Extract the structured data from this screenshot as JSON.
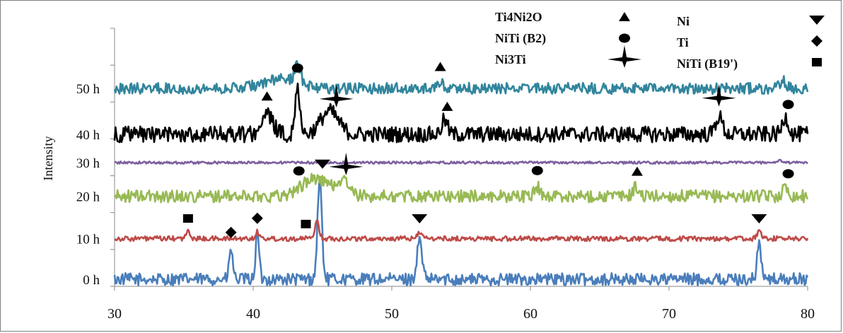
{
  "chart_data": {
    "type": "line",
    "title": "",
    "xlabel": "",
    "ylabel": "Intensity",
    "xlim": [
      30,
      80
    ],
    "x_ticks": [
      "30",
      "40",
      "50",
      "60",
      "70",
      "80"
    ],
    "grid": false,
    "legend_position": "top-right",
    "legend": [
      {
        "label": "Ti4Ni2O",
        "marker": "triangle"
      },
      {
        "label": "Ni",
        "marker": "triangle-down"
      },
      {
        "label": "NiTi (B2)",
        "marker": "circle"
      },
      {
        "label": "Ti",
        "marker": "diamond"
      },
      {
        "label": "Ni3Ti",
        "marker": "star"
      },
      {
        "label": "NiTi (B19')",
        "marker": "square"
      }
    ],
    "series": [
      {
        "name": "0 h",
        "color": "#4a7ebb",
        "baseline": 0,
        "noise": 0.35,
        "peaks": [
          [
            38.4,
            1.7,
            0.18
          ],
          [
            40.3,
            2.5,
            0.18
          ],
          [
            44.8,
            5.7,
            0.22
          ],
          [
            52.0,
            2.2,
            0.25
          ],
          [
            76.5,
            2.1,
            0.2
          ]
        ]
      },
      {
        "name": "10 h",
        "color": "#be4b48",
        "baseline": 2.3,
        "noise": 0.14,
        "peaks": [
          [
            35.3,
            0.4,
            0.2
          ],
          [
            40.3,
            0.4,
            0.2
          ],
          [
            44.6,
            1.0,
            0.22
          ],
          [
            52.0,
            0.4,
            0.22
          ],
          [
            76.5,
            0.4,
            0.22
          ]
        ]
      },
      {
        "name": "20 h",
        "color": "#98b954",
        "baseline": 4.7,
        "noise": 0.35,
        "peaks": [
          [
            44.5,
            1.0,
            1.4
          ],
          [
            46.5,
            0.8,
            0.6
          ],
          [
            60.5,
            0.5,
            0.3
          ],
          [
            67.6,
            0.5,
            0.3
          ],
          [
            78.4,
            0.5,
            0.3
          ]
        ]
      },
      {
        "name": "30 h",
        "color": "#7d60a0",
        "baseline": 6.6,
        "noise": 0.07,
        "peaks": [
          [
            78.0,
            0.1,
            0.3
          ]
        ]
      },
      {
        "name": "40 h",
        "color": "#000000",
        "baseline": 8.2,
        "noise": 0.45,
        "peaks": [
          [
            41.0,
            1.1,
            0.6
          ],
          [
            43.2,
            2.7,
            0.25
          ],
          [
            45.5,
            1.3,
            0.9
          ],
          [
            53.8,
            0.8,
            0.3
          ],
          [
            73.6,
            1.0,
            0.35
          ],
          [
            78.4,
            1.0,
            0.3
          ]
        ]
      },
      {
        "name": "50 h",
        "color": "#31859c",
        "baseline": 10.8,
        "noise": 0.32,
        "peaks": [
          [
            43.2,
            1.2,
            0.3
          ],
          [
            42.0,
            0.5,
            1.8
          ],
          [
            53.5,
            0.3,
            0.3
          ],
          [
            78.2,
            0.5,
            0.3
          ]
        ]
      }
    ],
    "annotations": [
      {
        "marker": "square",
        "x": 35.3,
        "series": "10 h"
      },
      {
        "marker": "diamond",
        "x": 38.4,
        "series": "0 h"
      },
      {
        "marker": "diamond",
        "x": 40.3,
        "series": "0 h"
      },
      {
        "marker": "square",
        "x": 43.8,
        "series": "10 h"
      },
      {
        "marker": "triangle-down",
        "x": 45.0,
        "series": "20 h"
      },
      {
        "marker": "triangle-down",
        "x": 52.0,
        "series": "10 h"
      },
      {
        "marker": "triangle-down",
        "x": 76.5,
        "series": "10 h"
      },
      {
        "marker": "circle",
        "x": 43.3,
        "series": "20 h"
      },
      {
        "marker": "star",
        "x": 46.7,
        "series": "20 h"
      },
      {
        "marker": "circle",
        "x": 60.5,
        "series": "20 h"
      },
      {
        "marker": "triangle",
        "x": 67.7,
        "series": "20 h"
      },
      {
        "marker": "circle",
        "x": 78.6,
        "series": "20 h"
      },
      {
        "marker": "triangle",
        "x": 41.0,
        "series": "40 h"
      },
      {
        "marker": "circle",
        "x": 43.2,
        "series": "40 h"
      },
      {
        "marker": "star",
        "x": 46.0,
        "series": "40 h"
      },
      {
        "marker": "triangle",
        "x": 54.0,
        "series": "40 h"
      },
      {
        "marker": "star",
        "x": 73.6,
        "series": "40 h"
      },
      {
        "marker": "circle",
        "x": 78.6,
        "series": "40 h"
      },
      {
        "marker": "triangle",
        "x": 53.5,
        "series": "50 h"
      }
    ]
  }
}
